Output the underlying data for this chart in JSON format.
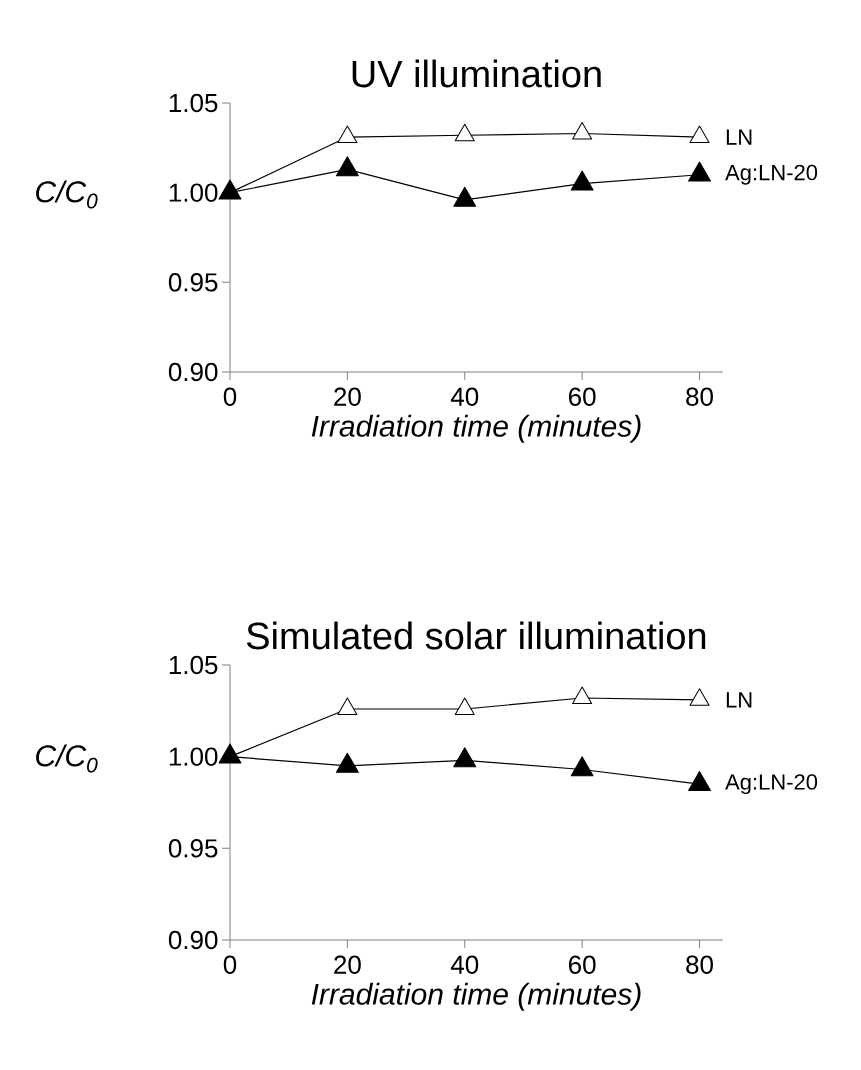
{
  "chart_data": [
    {
      "type": "line",
      "title": "UV illumination",
      "xlabel": "Irradiation time (minutes)",
      "ylabel": "C/C$_{0}$",
      "x": [
        0,
        20,
        40,
        60,
        80
      ],
      "xlim": [
        0,
        84
      ],
      "xticks": [
        0,
        20,
        40,
        60,
        80
      ],
      "ylim": [
        0.9,
        1.05
      ],
      "yticks": [
        {
          "value": 0.9,
          "label": "0.90"
        },
        {
          "value": 0.95,
          "label": "0.95"
        },
        {
          "value": 1.0,
          "label": "1.00"
        },
        {
          "value": 1.05,
          "label": "1.05"
        }
      ],
      "marker": "triangle",
      "legend": false,
      "grid": false,
      "series": [
        {
          "name": "LN",
          "color": "#ffffff",
          "values": [
            1.0,
            1.031,
            1.032,
            1.033,
            1.031
          ]
        },
        {
          "name": "Ag:LN-20",
          "color": "#000000",
          "values": [
            1.0,
            1.013,
            0.996,
            1.005,
            1.01
          ]
        }
      ]
    },
    {
      "type": "line",
      "title": "Simulated solar illumination",
      "xlabel": "Irradiation time (minutes)",
      "ylabel": "C/C$_{0}$",
      "x": [
        0,
        20,
        40,
        60,
        80
      ],
      "xlim": [
        0,
        84
      ],
      "xticks": [
        0,
        20,
        40,
        60,
        80
      ],
      "ylim": [
        0.9,
        1.05
      ],
      "yticks": [
        {
          "value": 0.9,
          "label": "0.90"
        },
        {
          "value": 0.95,
          "label": "0.95"
        },
        {
          "value": 1.0,
          "label": "1.00"
        },
        {
          "value": 1.05,
          "label": "1.05"
        }
      ],
      "marker": "triangle",
      "legend": false,
      "grid": false,
      "series": [
        {
          "name": "LN",
          "color": "#ffffff",
          "values": [
            1.0,
            1.026,
            1.026,
            1.032,
            1.031
          ]
        },
        {
          "name": "Ag:LN-20",
          "color": "#000000",
          "values": [
            1.0,
            0.995,
            0.998,
            0.993,
            0.985
          ]
        }
      ]
    }
  ]
}
